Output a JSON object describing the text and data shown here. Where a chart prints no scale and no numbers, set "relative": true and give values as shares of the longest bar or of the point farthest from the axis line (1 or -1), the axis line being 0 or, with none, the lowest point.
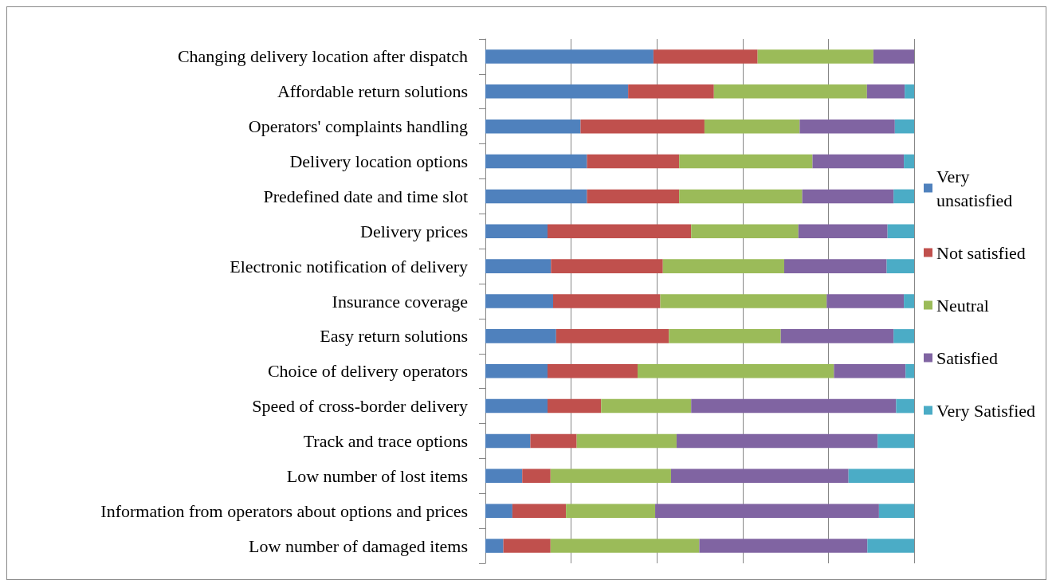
{
  "chart_data": {
    "type": "bar",
    "orientation": "horizontal",
    "stacked": true,
    "relative": true,
    "grid": "x",
    "legend": "right",
    "categories": [
      "Changing delivery location after dispatch",
      "Affordable return solutions",
      "Operators' complaints handling",
      "Delivery location options",
      "Predefined date and time slot",
      "Delivery prices",
      "Electronic notification of delivery",
      "Insurance coverage",
      "Easy return solutions",
      "Choice of delivery operators",
      "Speed of cross-border delivery",
      "Track and trace options",
      "Low number of lost items",
      "Information from operators about options and prices",
      "Low number of damaged items"
    ],
    "series": [
      {
        "name": "Very unsatisfied",
        "color": "#4f81bd",
        "values": [
          0.392,
          0.333,
          0.222,
          0.237,
          0.237,
          0.145,
          0.153,
          0.158,
          0.165,
          0.145,
          0.145,
          0.105,
          0.086,
          0.063,
          0.042
        ]
      },
      {
        "name": "Not satisfied",
        "color": "#c0504d",
        "values": [
          0.243,
          0.2,
          0.289,
          0.215,
          0.215,
          0.335,
          0.261,
          0.25,
          0.263,
          0.21,
          0.125,
          0.108,
          0.066,
          0.125,
          0.11
        ]
      },
      {
        "name": "Neutral",
        "color": "#9bbb59",
        "values": [
          0.27,
          0.357,
          0.222,
          0.311,
          0.287,
          0.25,
          0.283,
          0.388,
          0.261,
          0.458,
          0.21,
          0.233,
          0.281,
          0.208,
          0.347
        ]
      },
      {
        "name": "Satisfied",
        "color": "#8064a2",
        "values": [
          0.095,
          0.088,
          0.222,
          0.213,
          0.213,
          0.208,
          0.239,
          0.18,
          0.263,
          0.167,
          0.478,
          0.469,
          0.414,
          0.522,
          0.392
        ]
      },
      {
        "name": "Very Satisfied",
        "color": "#4bacc6",
        "values": [
          0,
          0.022,
          0.045,
          0.024,
          0.048,
          0.062,
          0.064,
          0.024,
          0.048,
          0.02,
          0.042,
          0.085,
          0.153,
          0.082,
          0.109
        ]
      }
    ]
  }
}
